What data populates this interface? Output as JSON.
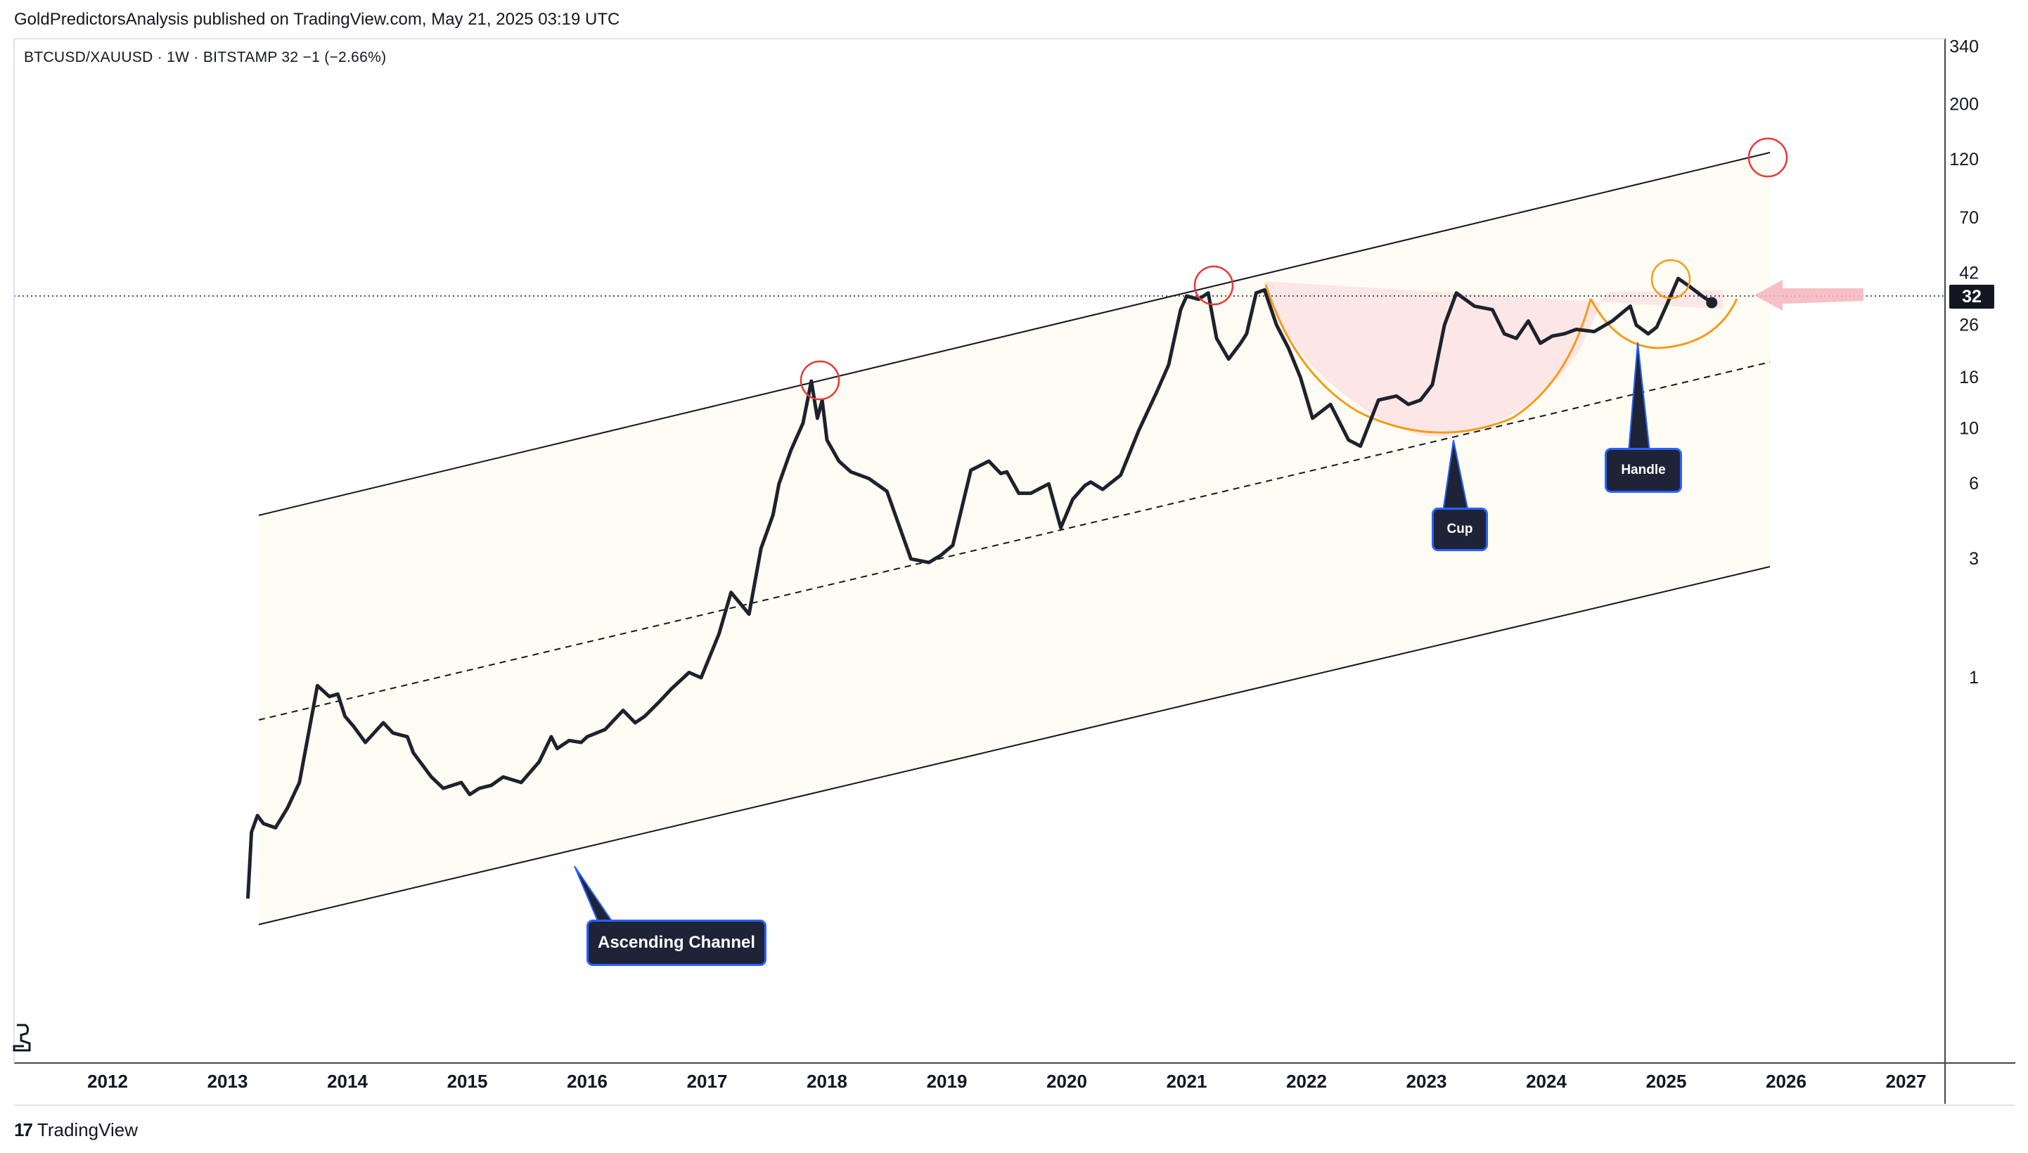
{
  "header": {
    "published": "GoldPredictorsAnalysis published on TradingView.com, May 21, 2025 03:19 UTC",
    "symbol_line": "BTCUSD/XAUUSD · 1W · BITSTAMP  32  −1 (−2.66%)"
  },
  "price_badge": "32",
  "footer": {
    "brand": "TradingView",
    "logo_mark": "17"
  },
  "annotations": {
    "ascending_channel": "Ascending Channel",
    "cup": "Cup",
    "handle": "Handle"
  },
  "colors": {
    "price_line": "#1e222d",
    "channel_fill": "#fffdf3",
    "cup_fill": "#fde4e4",
    "cup_curve": "#f59b1a",
    "circle_red": "#e53935",
    "circle_orange": "#f59b1a",
    "arrow_pink": "#f7b4bd",
    "callout_bg": "#1e2337",
    "callout_border": "#2962ff"
  },
  "chart_data": {
    "type": "line",
    "scale": "log",
    "x_ticks": [
      "2012",
      "2013",
      "2014",
      "2015",
      "2016",
      "2017",
      "2018",
      "2019",
      "2020",
      "2021",
      "2022",
      "2023",
      "2024",
      "2025",
      "2026",
      "2027"
    ],
    "y_ticks": [
      "340",
      "200",
      "120",
      "70",
      "42",
      "26",
      "16",
      "10",
      "6",
      "3",
      "1"
    ],
    "y_tick_values": [
      340,
      200,
      120,
      70,
      42,
      26,
      16,
      10,
      6,
      3,
      1
    ],
    "last_value": 32,
    "xlim": [
      2011.75,
      2027.2
    ],
    "ylim": [
      0.12,
      360
    ],
    "series": [
      {
        "x": [
          2013.17,
          2013.2,
          2013.25,
          2013.3,
          2013.4,
          2013.5,
          2013.6,
          2013.75,
          2013.85,
          2013.92,
          2013.98,
          2014.05,
          2014.15,
          2014.3,
          2014.38,
          2014.5,
          2014.55,
          2014.7,
          2014.8,
          2014.95,
          2015.02,
          2015.1,
          2015.2,
          2015.3,
          2015.45,
          2015.6,
          2015.7,
          2015.75,
          2015.85,
          2015.95,
          2016.0,
          2016.15,
          2016.3,
          2016.4,
          2016.48,
          2016.6,
          2016.7,
          2016.85,
          2016.95,
          2017.1,
          2017.2,
          2017.35,
          2017.45,
          2017.55,
          2017.6,
          2017.7,
          2017.8,
          2017.87,
          2017.92,
          2017.96,
          2018.0,
          2018.1,
          2018.2,
          2018.35,
          2018.5,
          2018.7,
          2018.85,
          2018.95,
          2019.05,
          2019.2,
          2019.35,
          2019.45,
          2019.5,
          2019.6,
          2019.7,
          2019.85,
          2019.95,
          2020.05,
          2020.15,
          2020.2,
          2020.3,
          2020.45,
          2020.6,
          2020.75,
          2020.85,
          2020.95,
          2021.0,
          2021.1,
          2021.18,
          2021.25,
          2021.35,
          2021.45,
          2021.5,
          2021.58,
          2021.65,
          2021.75,
          2021.85,
          2021.95,
          2022.05,
          2022.2,
          2022.35,
          2022.45,
          2022.6,
          2022.75,
          2022.85,
          2022.95,
          2023.05,
          2023.15,
          2023.25,
          2023.4,
          2023.55,
          2023.65,
          2023.75,
          2023.85,
          2023.95,
          2024.05,
          2024.15,
          2024.25,
          2024.4,
          2024.55,
          2024.7,
          2024.75,
          2024.85,
          2024.92,
          2025.0,
          2025.1,
          2025.2,
          2025.3,
          2025.38
        ],
        "y": [
          0.13,
          0.24,
          0.28,
          0.26,
          0.25,
          0.3,
          0.38,
          0.93,
          0.84,
          0.86,
          0.7,
          0.64,
          0.55,
          0.66,
          0.6,
          0.58,
          0.5,
          0.4,
          0.36,
          0.38,
          0.34,
          0.36,
          0.37,
          0.4,
          0.38,
          0.46,
          0.58,
          0.52,
          0.56,
          0.55,
          0.58,
          0.62,
          0.74,
          0.66,
          0.7,
          0.8,
          0.9,
          1.05,
          1.0,
          1.5,
          2.2,
          1.8,
          3.3,
          4.5,
          6.0,
          8.2,
          10.5,
          15.5,
          11.0,
          13.0,
          9.0,
          7.4,
          6.7,
          6.3,
          5.6,
          3.0,
          2.9,
          3.1,
          3.4,
          6.8,
          7.4,
          6.6,
          6.7,
          5.5,
          5.5,
          6.0,
          4.0,
          5.2,
          5.9,
          6.1,
          5.7,
          6.5,
          9.8,
          14.0,
          18.0,
          30.0,
          34.0,
          33.0,
          35.0,
          23.0,
          19.0,
          22.0,
          24.0,
          35.0,
          36.0,
          26.0,
          21.0,
          16.0,
          11.0,
          12.5,
          9.0,
          8.5,
          13.0,
          13.5,
          12.5,
          13.0,
          15.0,
          26.0,
          35.0,
          31.0,
          30.0,
          24.0,
          23.0,
          27.0,
          22.0,
          23.5,
          24.0,
          25.0,
          24.5,
          27.0,
          31.0,
          26.0,
          24.0,
          25.5,
          31.0,
          40.0,
          37.0,
          34.0,
          32.0
        ]
      }
    ]
  }
}
